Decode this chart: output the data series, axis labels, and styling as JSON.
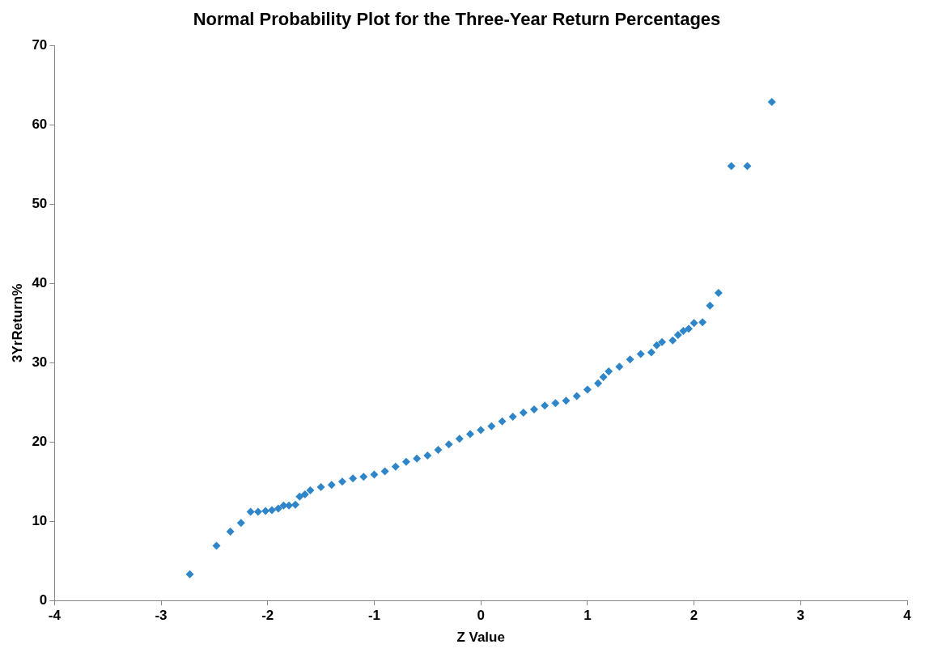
{
  "chart_data": {
    "type": "scatter",
    "title": "Normal Probability Plot for the Three-Year Return Percentages",
    "xlabel": "Z Value",
    "ylabel": "3YrReturn%",
    "marker": "diamond",
    "xlim": [
      -4,
      4
    ],
    "xticks": [
      -4,
      -3,
      -2,
      -1,
      0,
      1,
      2,
      3,
      4
    ],
    "ylim": [
      0,
      70
    ],
    "yticks": [
      0,
      10,
      20,
      30,
      40,
      50,
      60,
      70
    ],
    "series": [
      {
        "color": "#2e86c8",
        "x": [
          -2.73,
          -2.48,
          -2.35,
          -2.25,
          -2.16,
          -2.09,
          -2.02,
          -1.96,
          -1.9,
          -1.85,
          -1.8,
          -1.74,
          -1.7,
          -1.65,
          -1.6,
          -1.5,
          -1.4,
          -1.3,
          -1.2,
          -1.1,
          -1.0,
          -0.9,
          -0.8,
          -0.7,
          -0.6,
          -0.5,
          -0.4,
          -0.3,
          -0.2,
          -0.1,
          0,
          0.1,
          0.2,
          0.3,
          0.4,
          0.5,
          0.6,
          0.7,
          0.8,
          0.9,
          1.0,
          1.1,
          1.15,
          1.2,
          1.3,
          1.4,
          1.5,
          1.6,
          1.65,
          1.7,
          1.8,
          1.85,
          1.9,
          1.95,
          2.0,
          2.08,
          2.15,
          2.23,
          2.35,
          2.5,
          2.73
        ],
        "values": [
          3.3,
          6.9,
          8.7,
          9.8,
          11.2,
          11.2,
          11.3,
          11.4,
          11.6,
          12.0,
          12.0,
          12.1,
          13.1,
          13.4,
          13.9,
          14.3,
          14.6,
          15.0,
          15.4,
          15.6,
          15.9,
          16.3,
          16.9,
          17.5,
          17.9,
          18.3,
          19.0,
          19.7,
          20.4,
          21.0,
          21.5,
          22.0,
          22.6,
          23.2,
          23.7,
          24.1,
          24.6,
          24.9,
          25.2,
          25.8,
          26.6,
          27.4,
          28.2,
          28.9,
          29.5,
          30.4,
          31.1,
          31.3,
          32.2,
          32.6,
          32.8,
          33.5,
          34.0,
          34.3,
          35.0,
          35.1,
          37.2,
          38.8,
          54.8,
          54.8,
          62.9
        ]
      }
    ]
  }
}
